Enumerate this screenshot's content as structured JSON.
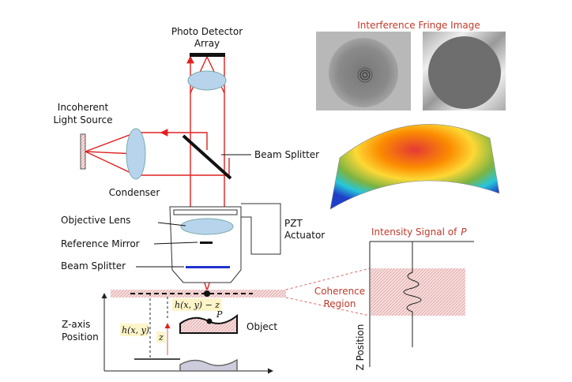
{
  "labels": {
    "photo_detector": [
      "Photo Detector",
      "Array"
    ],
    "fringe_title": "Interference Fringe Image",
    "light_source": [
      "Incoherent",
      "Light Source"
    ],
    "beam_splitter_upper": "Beam Splitter",
    "condenser": "Condenser",
    "objective_lens": "Objective Lens",
    "pzt": [
      "PZT",
      "Actuator"
    ],
    "reference_mirror": "Reference Mirror",
    "beam_splitter_lower": "Beam Splitter",
    "intensity_title": "Intensity Signal of",
    "intensity_point": "P",
    "coherence_region": [
      "Coherence",
      "Region"
    ],
    "height_minus_z": "h(x, y) − z",
    "height": "h(x, y)",
    "z": "z",
    "point": "P",
    "object": "Object",
    "z_axis": [
      "Z-axis",
      "Position"
    ],
    "z_position": "Z Position"
  }
}
